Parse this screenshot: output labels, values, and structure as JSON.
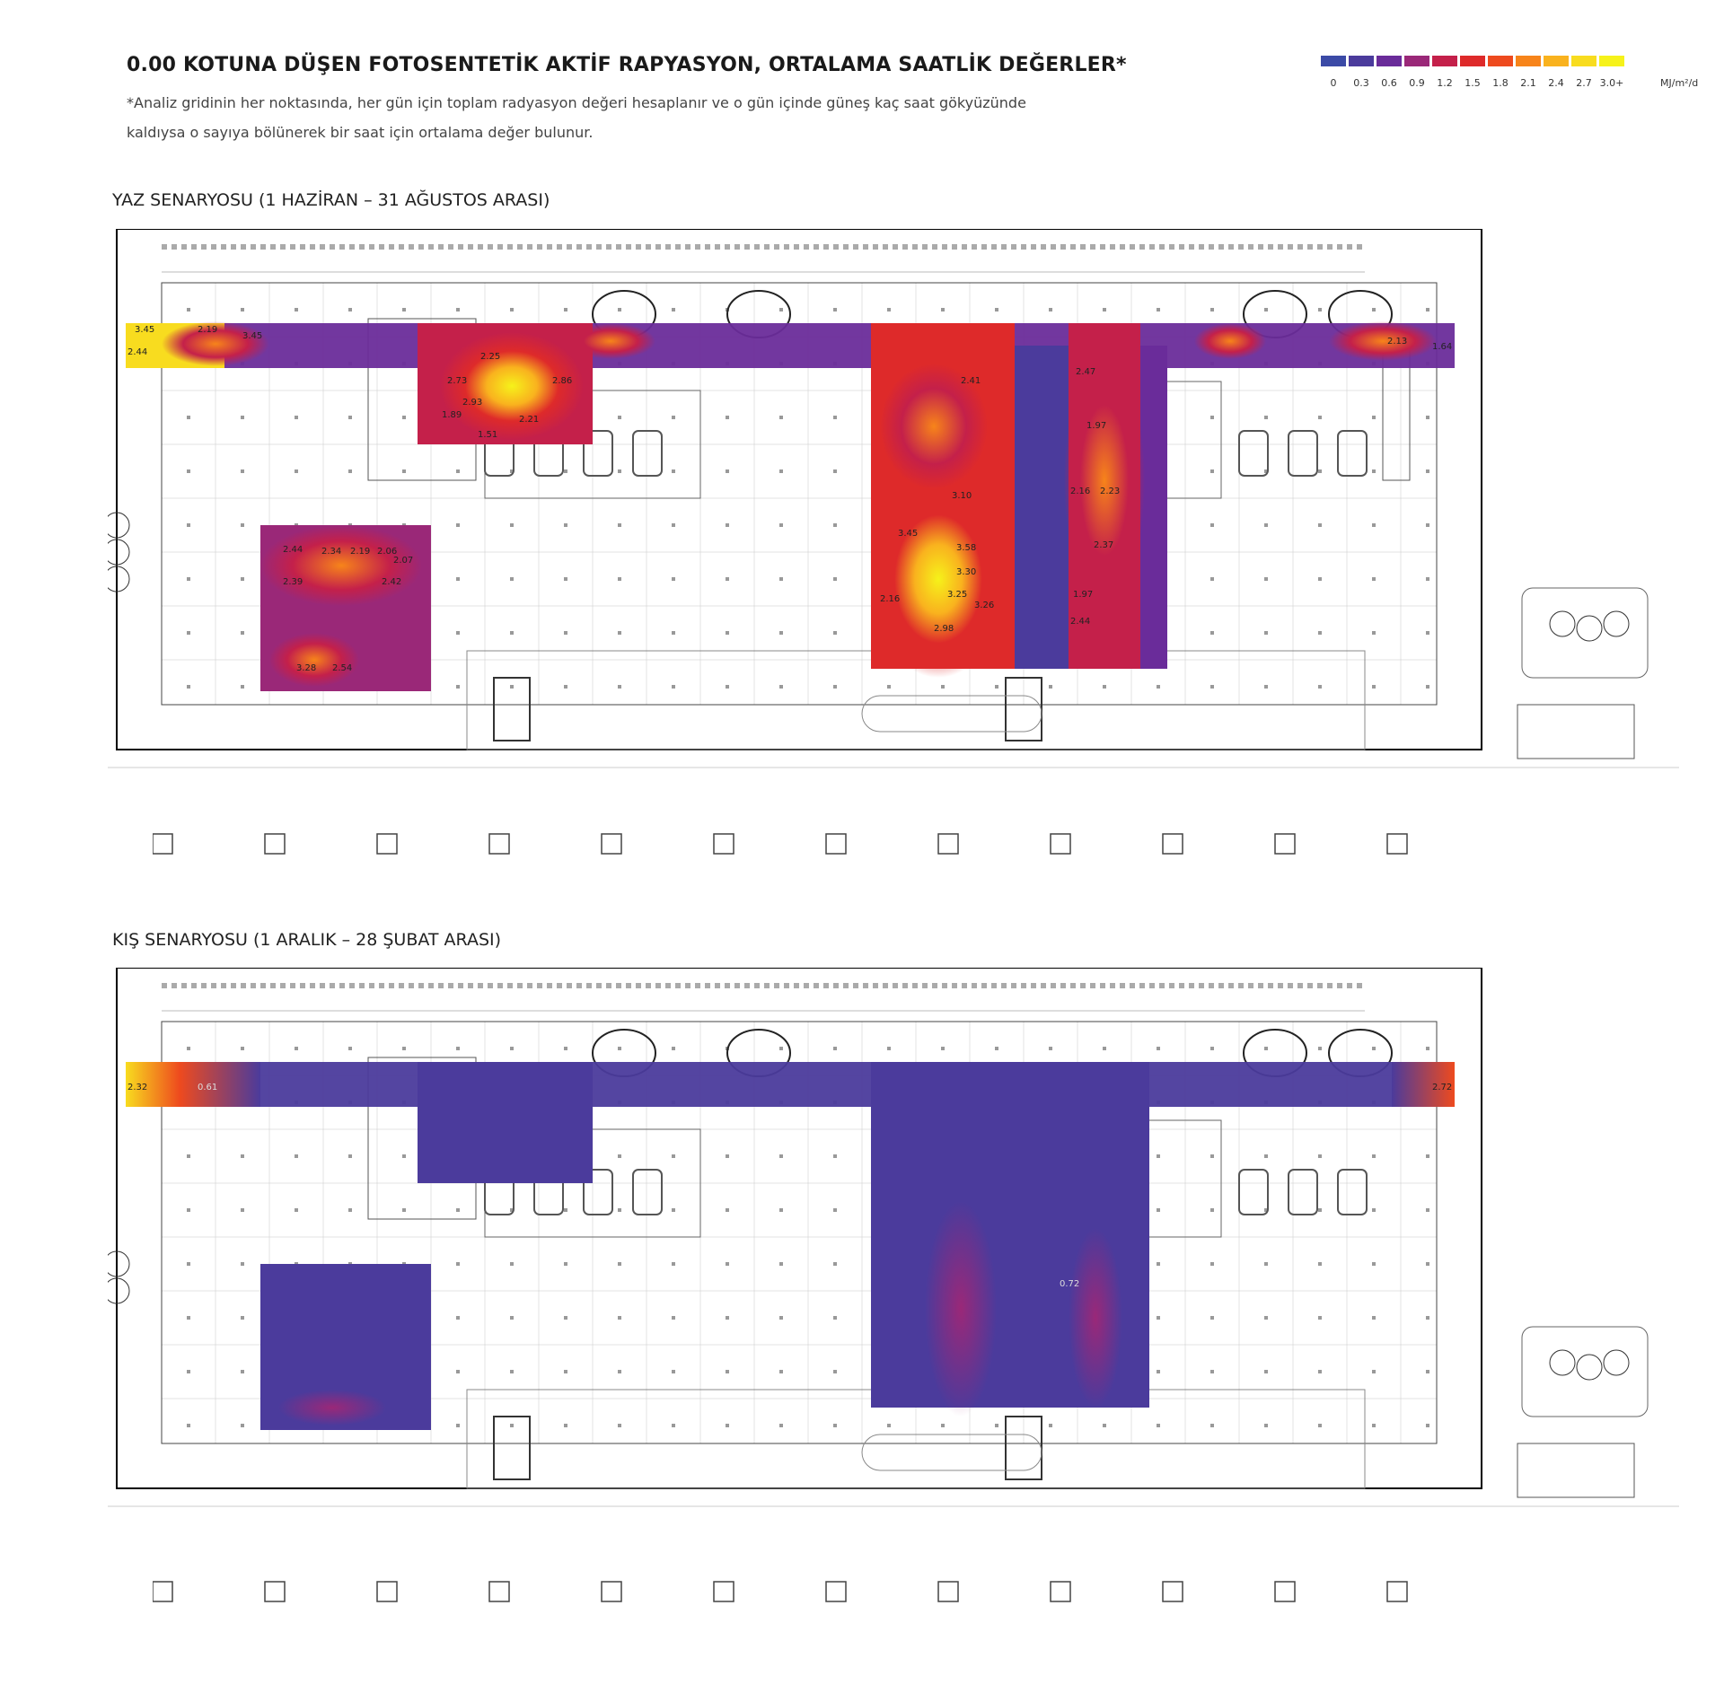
{
  "header": {
    "title": "0.00 KOTUNA DÜŞEN FOTOSENTETİK AKTİF RAPYASYON, ORTALAMA SAATLİK DEĞERLER*",
    "note": "*Analiz gridinin her noktasında, her gün için toplam radyasyon değeri hesaplanır ve o gün içinde güneş kaç saat gökyüzünde kaldıysa o sayıya bölünerek bir saat için ortalama değer bulunur."
  },
  "legend": {
    "unit": "MJ/m²/d",
    "ticks": [
      "0",
      "0.3",
      "0.6",
      "0.9",
      "1.2",
      "1.5",
      "1.8",
      "2.1",
      "2.4",
      "2.7",
      "3.0+"
    ],
    "colors": [
      "#3b4aa6",
      "#4b3b9c",
      "#6a2c9a",
      "#9a2878",
      "#c4204a",
      "#de2a2a",
      "#ee4a1e",
      "#f7841a",
      "#f9b21e",
      "#f8dc1f",
      "#f6f21a"
    ]
  },
  "scenarios": [
    {
      "label": "YAZ SENARYOSU (1 HAZİRAN – 31 AĞUSTOS ARASI)",
      "labels": [
        "3.45",
        "2.19",
        "2.44",
        "3.45",
        "2.25",
        "2.73",
        "2.86",
        "2.93",
        "2.21",
        "1.51",
        "1.89",
        "2.41",
        "3.10",
        "3.45",
        "3.58",
        "3.30",
        "3.25",
        "2.16",
        "3.26",
        "2.98",
        "2.47",
        "1.97",
        "2.16",
        "2.23",
        "2.37",
        "1.97",
        "2.44",
        "2.44",
        "2.34",
        "2.19",
        "2.06",
        "2.39",
        "2.42",
        "2.07",
        "3.28",
        "2.54",
        "1.64",
        "2.13"
      ]
    },
    {
      "label": "KIŞ SENARYOSU (1 ARALIK – 28 ŞUBAT ARASI)",
      "labels": [
        "2.32",
        "2.72",
        "0.61",
        "0.72"
      ]
    }
  ]
}
